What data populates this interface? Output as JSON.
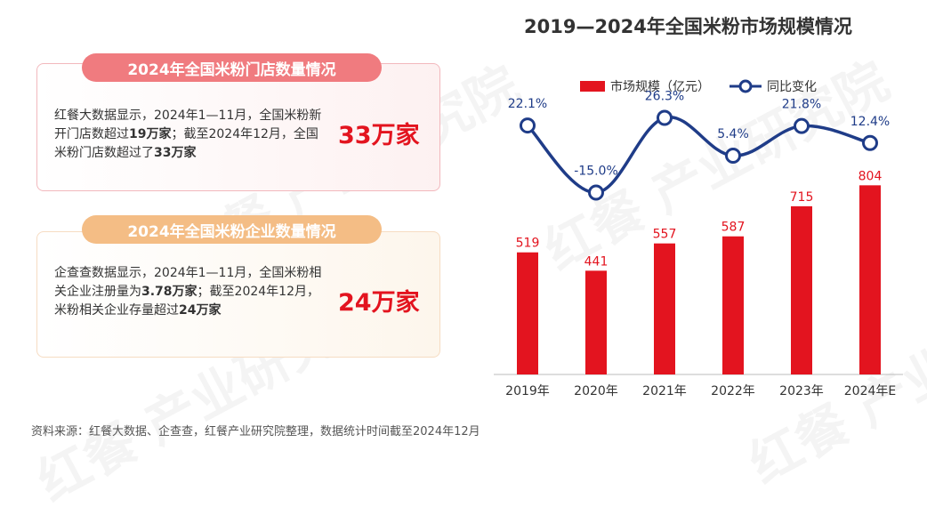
{
  "left_panel": {
    "card1": {
      "title": "2024年全国米粉门店数量情况",
      "text_parts": [
        {
          "t": "红餐大数据显示，2024年1—11月，全国米粉新开门店数超过",
          "bold": false
        },
        {
          "t": "19万家",
          "bold": true
        },
        {
          "t": "；截至2024年12月，全国米粉门店数超过了",
          "bold": false
        },
        {
          "t": "33万家",
          "bold": true
        }
      ],
      "highlight": "33万家"
    },
    "card2": {
      "title": "2024年全国米粉企业数量情况",
      "text_parts": [
        {
          "t": "企查查数据显示，2024年1—11月，全国米粉相关企业注册量为",
          "bold": false
        },
        {
          "t": "3.78万家",
          "bold": true
        },
        {
          "t": "；截至2024年12月，米粉相关企业存量超过",
          "bold": false
        },
        {
          "t": "24万家",
          "bold": true
        }
      ],
      "highlight": "24万家"
    }
  },
  "watermark_text": "红餐 产业研究院",
  "source": "资料来源：红餐大数据、企查查，红餐产业研究院整理，数据统计时间截至2024年12月",
  "chart_data": {
    "type": "bar",
    "title": "2019—2024年全国米粉市场规模情况",
    "categories": [
      "2019年",
      "2020年",
      "2021年",
      "2022年",
      "2023年",
      "2024年E"
    ],
    "series": [
      {
        "name": "市场规模（亿元）",
        "type": "bar",
        "values": [
          519,
          441,
          557,
          587,
          715,
          804
        ],
        "labels": [
          "519",
          "441",
          "557",
          "587",
          "715",
          "804"
        ]
      },
      {
        "name": "同比变化",
        "type": "line",
        "values": [
          22.1,
          -15.0,
          26.3,
          5.4,
          21.8,
          12.4
        ],
        "labels": [
          "22.1%",
          "-15.0%",
          "26.3%",
          "5.4%",
          "21.8%",
          "12.4%"
        ]
      }
    ],
    "legend_position": "top",
    "grid": false,
    "colors": {
      "bar": "#e3141f",
      "line": "#1f3c88",
      "label_bar": "#e3141f",
      "label_line": "#1f3c88"
    }
  }
}
